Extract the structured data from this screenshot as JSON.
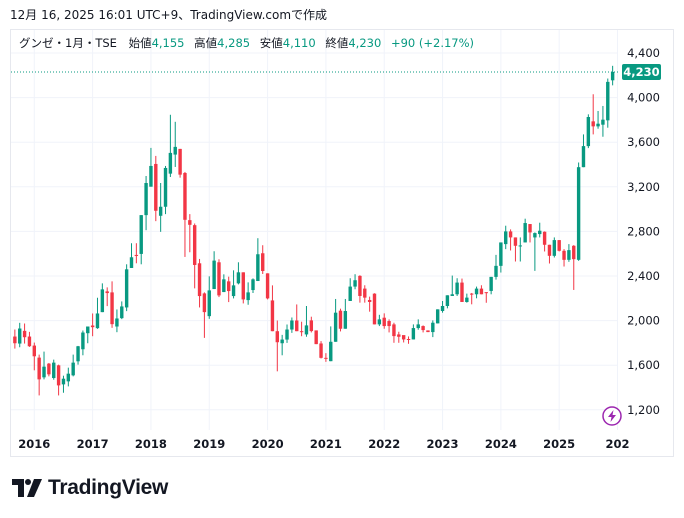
{
  "caption": "12月 16, 2025 16:01 UTC+9、TradingView.comで作成",
  "legend": {
    "symbol": "グンゼ・1月・TSE",
    "open_label": "始値",
    "open": "4,155",
    "high_label": "高値",
    "high": "4,285",
    "low_label": "安値",
    "low": "4,110",
    "close_label": "終値",
    "close": "4,230",
    "change": "+90 (+2.17%)"
  },
  "last_price_label": "4,230",
  "logo_text": "TradingView",
  "colors": {
    "up": "#089981",
    "down": "#f23645",
    "grid": "#f0f3fa",
    "text": "#131722",
    "bolt": "#9c27b0"
  },
  "chart_data": {
    "type": "candlestick",
    "interval": "1M",
    "first_bar": "2015-09",
    "ylim": [
      1100,
      4470
    ],
    "y_ticks": [
      1200,
      1600,
      2000,
      2400,
      2800,
      3200,
      3600,
      4000,
      4400
    ],
    "y_tick_labels": [
      "1,200",
      "1,600",
      "2,000",
      "2,400",
      "2,800",
      "3,200",
      "3,600",
      "4,000",
      "4,400"
    ],
    "x_ticks": [
      "2016",
      "2017",
      "2018",
      "2019",
      "2020",
      "2021",
      "2022",
      "2023",
      "2024",
      "2025",
      "202"
    ],
    "last_price": 4230,
    "ohlc": [
      [
        1857,
        1920,
        1749,
        1797
      ],
      [
        1794,
        1980,
        1761,
        1929
      ],
      [
        1908,
        1974,
        1794,
        1851
      ],
      [
        1857,
        1899,
        1764,
        1770
      ],
      [
        1776,
        1803,
        1554,
        1680
      ],
      [
        1668,
        1695,
        1329,
        1473
      ],
      [
        1491,
        1722,
        1473,
        1587
      ],
      [
        1614,
        1620,
        1500,
        1518
      ],
      [
        1485,
        1650,
        1470,
        1623
      ],
      [
        1599,
        1605,
        1329,
        1419
      ],
      [
        1428,
        1506,
        1353,
        1479
      ],
      [
        1455,
        1578,
        1410,
        1524
      ],
      [
        1509,
        1695,
        1500,
        1623
      ],
      [
        1635,
        1773,
        1605,
        1770
      ],
      [
        1743,
        1911,
        1689,
        1893
      ],
      [
        1887,
        1947,
        1797,
        1947
      ],
      [
        1956,
        2064,
        1860,
        1941
      ],
      [
        1932,
        2205,
        1926,
        2064
      ],
      [
        2076,
        2334,
        2076,
        2280
      ],
      [
        2262,
        2298,
        2130,
        2247
      ],
      [
        2253,
        2352,
        1935,
        1968
      ],
      [
        1947,
        2100,
        1896,
        2019
      ],
      [
        2022,
        2172,
        2013,
        2127
      ],
      [
        2118,
        2505,
        2085,
        2460
      ],
      [
        2472,
        2694,
        2472,
        2568
      ],
      [
        2589,
        2694,
        2514,
        2580
      ],
      [
        2598,
        2946,
        2505,
        2946
      ],
      [
        2946,
        3297,
        2811,
        3234
      ],
      [
        3201,
        3549,
        3201,
        3387
      ],
      [
        3405,
        3477,
        2892,
        2985
      ],
      [
        2940,
        3234,
        2796,
        3021
      ],
      [
        3021,
        3387,
        2955,
        3369
      ],
      [
        3318,
        3846,
        3288,
        3504
      ],
      [
        3489,
        3783,
        3378,
        3558
      ],
      [
        3540,
        3540,
        3282,
        3309
      ],
      [
        3324,
        3333,
        2571,
        2904
      ],
      [
        2901,
        2955,
        2613,
        2859
      ],
      [
        2856,
        2871,
        2289,
        2499
      ],
      [
        2514,
        2553,
        2118,
        2220
      ],
      [
        2244,
        2253,
        1845,
        2076
      ],
      [
        2040,
        2397,
        2016,
        2271
      ],
      [
        2283,
        2622,
        2283,
        2538
      ],
      [
        2523,
        2550,
        2211,
        2226
      ],
      [
        2256,
        2415,
        2256,
        2370
      ],
      [
        2352,
        2394,
        2166,
        2265
      ],
      [
        2220,
        2451,
        2199,
        2316
      ],
      [
        2334,
        2523,
        2325,
        2433
      ],
      [
        2433,
        2433,
        2154,
        2190
      ],
      [
        2184,
        2343,
        2142,
        2253
      ],
      [
        2274,
        2379,
        2247,
        2370
      ],
      [
        2355,
        2739,
        2355,
        2595
      ],
      [
        2604,
        2676,
        2418,
        2445
      ],
      [
        2424,
        2424,
        2190,
        2199
      ],
      [
        2181,
        2316,
        1905,
        1905
      ],
      [
        1905,
        2001,
        1545,
        1806
      ],
      [
        1797,
        1872,
        1689,
        1830
      ],
      [
        1830,
        1965,
        1800,
        1920
      ],
      [
        1920,
        2028,
        1890,
        2001
      ],
      [
        2001,
        2145,
        1905,
        1905
      ],
      [
        1905,
        1990,
        1860,
        1897
      ],
      [
        1876,
        2131,
        1855,
        1957
      ],
      [
        2002,
        2035,
        1894,
        1906
      ],
      [
        1912,
        1912,
        1789,
        1789
      ],
      [
        1795,
        1816,
        1660,
        1666
      ],
      [
        1666,
        1708,
        1630,
        1657
      ],
      [
        1636,
        1948,
        1636,
        1810
      ],
      [
        1810,
        2194,
        1810,
        2071
      ],
      [
        2089,
        2107,
        1903,
        1927
      ],
      [
        1927,
        2194,
        1927,
        2086
      ],
      [
        2176,
        2380,
        2176,
        2305
      ],
      [
        2305,
        2416,
        2281,
        2362
      ],
      [
        2401,
        2407,
        2161,
        2221
      ],
      [
        2287,
        2317,
        2161,
        2206
      ],
      [
        2185,
        2215,
        2080,
        2167
      ],
      [
        2242,
        2245,
        1966,
        1966
      ],
      [
        1966,
        2052,
        1951,
        2011
      ],
      [
        2026,
        2065,
        1927,
        1951
      ],
      [
        1996,
        2011,
        1894,
        1951
      ],
      [
        1966,
        1981,
        1801,
        1861
      ],
      [
        1876,
        1900,
        1801,
        1855
      ],
      [
        1870,
        1864,
        1804,
        1831
      ],
      [
        1835,
        1858,
        1792,
        1831
      ],
      [
        1831,
        1966,
        1831,
        1933
      ],
      [
        1933,
        2011,
        1918,
        1966
      ],
      [
        1951,
        1957,
        1894,
        1915
      ],
      [
        1912,
        1912,
        1897,
        1897
      ],
      [
        1897,
        2002,
        1852,
        1981
      ],
      [
        1975,
        2101,
        1975,
        2101
      ],
      [
        2086,
        2176,
        2071,
        2131
      ],
      [
        2131,
        2227,
        2110,
        2227
      ],
      [
        2221,
        2404,
        2221,
        2236
      ],
      [
        2236,
        2380,
        2221,
        2341
      ],
      [
        2341,
        2377,
        2167,
        2167
      ],
      [
        2167,
        2242,
        2161,
        2206
      ],
      [
        2242,
        2248,
        2146,
        2239
      ],
      [
        2236,
        2305,
        2200,
        2287
      ],
      [
        2287,
        2317,
        2236,
        2236
      ],
      [
        2255,
        2255,
        2160,
        2251
      ],
      [
        2266,
        2392,
        2236,
        2392
      ],
      [
        2392,
        2590,
        2368,
        2491
      ],
      [
        2491,
        2701,
        2431,
        2701
      ],
      [
        2686,
        2851,
        2641,
        2800
      ],
      [
        2800,
        2818,
        2629,
        2746
      ],
      [
        2746,
        2746,
        2530,
        2671
      ],
      [
        2668,
        2746,
        2530,
        2674
      ],
      [
        2701,
        2914,
        2701,
        2875
      ],
      [
        2866,
        2866,
        2701,
        2791
      ],
      [
        2746,
        2791,
        2446,
        2785
      ],
      [
        2776,
        2878,
        2746,
        2806
      ],
      [
        2797,
        2800,
        2620,
        2680
      ],
      [
        2680,
        2680,
        2512,
        2581
      ],
      [
        2581,
        2746,
        2566,
        2722
      ],
      [
        2722,
        2722,
        2620,
        2626
      ],
      [
        2626,
        2641,
        2485,
        2545
      ],
      [
        2545,
        2686,
        2527,
        2632
      ],
      [
        2671,
        2677,
        2275,
        2551
      ],
      [
        2545,
        3418,
        2536,
        3376
      ],
      [
        3376,
        3670,
        3376,
        3565
      ],
      [
        3565,
        3850,
        3547,
        3826
      ],
      [
        3787,
        4030,
        3670,
        3742
      ],
      [
        3742,
        3880,
        3721,
        3766
      ],
      [
        3757,
        3925,
        3649,
        3802
      ],
      [
        3796,
        4171,
        3730,
        4141
      ],
      [
        4155,
        4285,
        4110,
        4230
      ]
    ]
  }
}
